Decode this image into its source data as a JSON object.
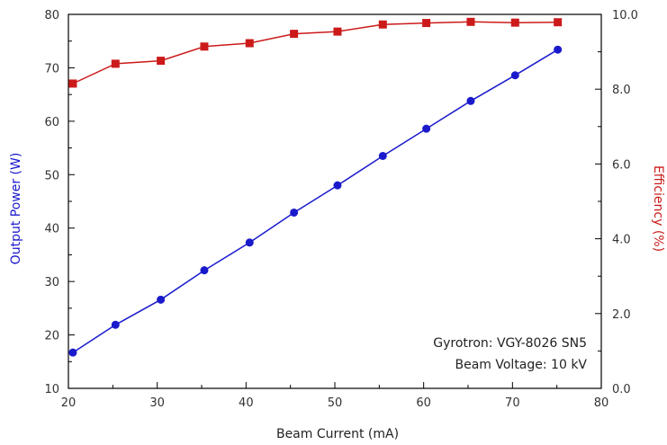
{
  "chart_data": {
    "type": "line",
    "title": "",
    "xlabel": "Beam Current (mA)",
    "ylabel_left": "Output Power (W)",
    "ylabel_right": "Efficiency (%)",
    "xlim": [
      20,
      80
    ],
    "ylim_left": [
      10,
      80
    ],
    "ylim_right": [
      0,
      10
    ],
    "x_ticks": [
      "20",
      "30",
      "40",
      "50",
      "60",
      "70",
      "80"
    ],
    "y_left_ticks": [
      "10",
      "20",
      "30",
      "40",
      "50",
      "60",
      "70",
      "80"
    ],
    "y_right_ticks": [
      "0.0",
      "2.0",
      "4.0",
      "6.0",
      "8.0",
      "10.0"
    ],
    "grid": false,
    "legend": "none",
    "annotations": [
      "Gyrotron: VGY-8026 SN5",
      "Beam Voltage: 10 kV"
    ],
    "series": [
      {
        "axis": "left",
        "color": "#1a1acc",
        "marker": "circle",
        "x": [
          20.5,
          25.3,
          30.4,
          35.3,
          40.4,
          45.4,
          50.3,
          55.4,
          60.3,
          65.3,
          70.3,
          75.1
        ],
        "values": [
          16.7,
          21.9,
          26.6,
          32.1,
          37.3,
          42.9,
          48.0,
          53.5,
          58.6,
          63.8,
          68.6,
          73.4
        ]
      },
      {
        "axis": "right",
        "color": "#cc1a1a",
        "marker": "square",
        "x": [
          20.5,
          25.3,
          30.4,
          35.3,
          40.4,
          45.4,
          50.3,
          55.4,
          60.3,
          65.3,
          70.3,
          75.1
        ],
        "values": [
          8.15,
          8.68,
          8.76,
          9.14,
          9.23,
          9.48,
          9.54,
          9.73,
          9.77,
          9.8,
          9.78,
          9.79
        ]
      }
    ]
  }
}
